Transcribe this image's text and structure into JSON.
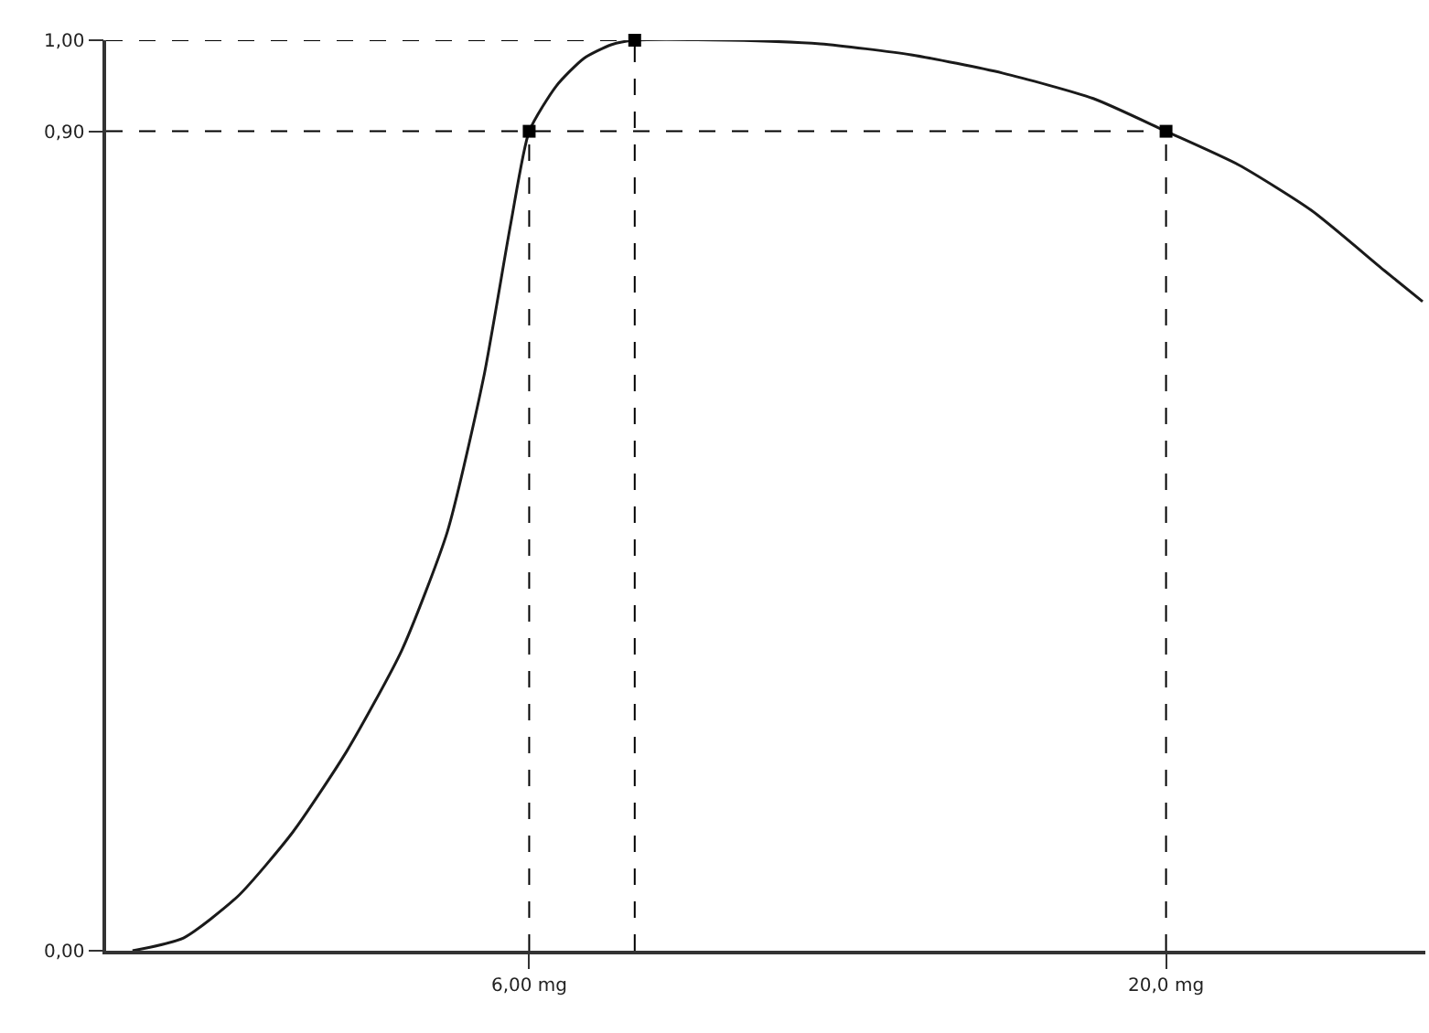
{
  "chart_data": {
    "type": "line",
    "xlim": [
      -3.3,
      25.7
    ],
    "ylim": [
      0,
      1.0
    ],
    "xticks": [
      {
        "value": 6,
        "label": "6,00 mg"
      },
      {
        "value": 20,
        "label": "20,0 mg"
      }
    ],
    "yticks": [
      {
        "value": 0,
        "label": "0,00"
      },
      {
        "value": 0.9,
        "label": "0,90"
      },
      {
        "value": 1.0,
        "label": "1,00"
      }
    ],
    "grid": false,
    "series": [
      {
        "color": "#1a1a1a",
        "marker": "none",
        "line_style": "solid",
        "x": [
          -2.72,
          -1.6,
          -0.4,
          0.8,
          2.0,
          3.2,
          4.2,
          5.0,
          5.6,
          6.0,
          6.6,
          7.2,
          7.8,
          8.32,
          10.4,
          12.4,
          14.4,
          16.4,
          18.4,
          20.0,
          21.6,
          23.2,
          24.8,
          25.64
        ],
        "values": [
          0,
          0.014,
          0.06,
          0.13,
          0.22,
          0.33,
          0.46,
          0.63,
          0.8,
          0.9,
          0.95,
          0.98,
          0.995,
          1.0,
          1.0,
          0.996,
          0.984,
          0.964,
          0.936,
          0.9,
          0.863,
          0.813,
          0.747,
          0.713
        ]
      },
      {
        "type": "scatter",
        "color": "#000000",
        "marker": "square",
        "x": [
          6.0,
          8.32,
          20.0
        ],
        "values": [
          0.9,
          1.0,
          0.9
        ]
      }
    ],
    "ref_lines": [
      {
        "axis": "y",
        "value": 1.0,
        "color": "#000000",
        "line_style": "dashed"
      },
      {
        "axis": "y",
        "value": 0.9,
        "color": "#000000",
        "line_style": "dashed"
      },
      {
        "axis": "x",
        "value": 6.0,
        "color": "#000000",
        "line_style": "dashed"
      },
      {
        "axis": "x",
        "value": 8.32,
        "color": "#000000",
        "line_style": "dashed"
      },
      {
        "axis": "x",
        "value": 20.0,
        "color": "#000000",
        "line_style": "dashed"
      }
    ]
  }
}
